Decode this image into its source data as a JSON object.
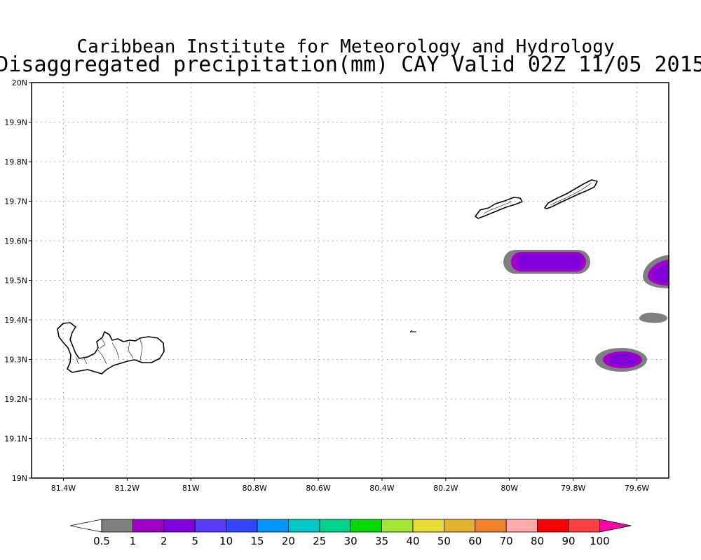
{
  "title": {
    "line1": "Caribbean Institute for Meteorology and Hydrology",
    "line2": "Disaggregated precipitation(mm) CAY Valid 02Z 11/05 2015"
  },
  "axes": {
    "lat_labels": [
      "20N",
      "19.9N",
      "19.8N",
      "19.7N",
      "19.6N",
      "19.5N",
      "19.4N",
      "19.3N",
      "19.2N",
      "19.1N",
      "19N"
    ],
    "lon_labels": [
      "81.4W",
      "81.2W",
      "81W",
      "80.8W",
      "80.6W",
      "80.4W",
      "80.2W",
      "80W",
      "79.8W",
      "79.6W"
    ],
    "lat_range": [
      19.0,
      20.0
    ],
    "lon_range": [
      -81.5,
      -79.5
    ],
    "grid": "dotted"
  },
  "colorbar": {
    "labels": [
      "0.5",
      "1",
      "2",
      "5",
      "10",
      "15",
      "20",
      "25",
      "30",
      "35",
      "40",
      "50",
      "60",
      "70",
      "80",
      "90",
      "100"
    ],
    "colors": [
      "#7f7f7f",
      "#a000c8",
      "#8200dc",
      "#5a3cff",
      "#3246ff",
      "#0096ff",
      "#00c8c8",
      "#00d28c",
      "#00dc00",
      "#a0e632",
      "#e6dc32",
      "#e6af2d",
      "#f08228",
      "#ffaaaa",
      "#ff0000",
      "#ff4040"
    ],
    "low_arrow_color": "#ffffff",
    "high_arrow_color": "#ff00aa"
  },
  "precip_cells": [
    {
      "name": "cell-north-main",
      "center": [
        -79.87,
        19.548
      ],
      "level_mm": 2
    },
    {
      "name": "cell-east-edge",
      "center": [
        -79.5,
        19.518
      ],
      "level_mm": 2
    },
    {
      "name": "cell-south",
      "center": [
        -79.645,
        19.3
      ],
      "level_mm": 2
    },
    {
      "name": "cell-east-small",
      "center": [
        -79.565,
        19.405
      ],
      "level_mm": 0.5
    }
  ],
  "islands": [
    "Grand Cayman",
    "Little Cayman",
    "Cayman Brac"
  ]
}
